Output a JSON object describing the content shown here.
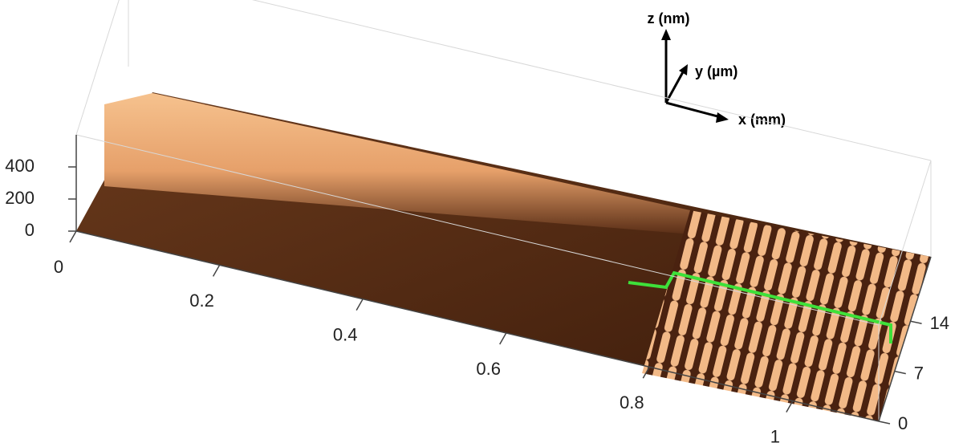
{
  "chart_data": {
    "type": "surface3d",
    "x_label": "x (mm)",
    "y_label": "y (µm)",
    "z_label": "z (nm)",
    "xlim": [
      0,
      1.12
    ],
    "ylim": [
      0,
      23
    ],
    "zlim": [
      0,
      600
    ],
    "xticks": [
      0,
      0.2,
      0.4,
      0.6,
      0.8,
      1
    ],
    "yticks": [
      0,
      7,
      14
    ],
    "zticks": [
      0,
      200,
      400
    ]
  }
}
